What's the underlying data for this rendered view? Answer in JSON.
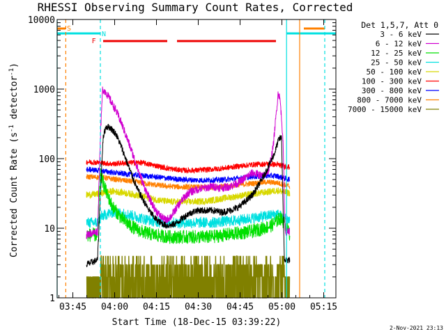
{
  "chart_data": {
    "type": "line",
    "title": "RHESSI Observing Summary Count Rates, Corrected",
    "xlabel": "Start Time (18-Dec-15 03:39:22)",
    "ylabel_main": "Corrected Count Rate (s",
    "ylabel_sup": "-1",
    "ylabel_tail": " detector",
    "ylabel_end": ")",
    "footer": "2-Nov-2021 23:13",
    "y_scale": "log",
    "ylim": [
      1,
      10000
    ],
    "xlim_minutes": [
      0,
      100
    ],
    "x_ticks": [
      {
        "label": "03:45",
        "m": 5.63
      },
      {
        "label": "04:00",
        "m": 20.63
      },
      {
        "label": "04:15",
        "m": 35.63
      },
      {
        "label": "04:30",
        "m": 50.63
      },
      {
        "label": "04:45",
        "m": 65.63
      },
      {
        "label": "05:00",
        "m": 80.63
      },
      {
        "label": "05:15",
        "m": 95.63
      }
    ],
    "y_ticks": [
      {
        "label": "1",
        "v": 1
      },
      {
        "label": "10",
        "v": 10
      },
      {
        "label": "100",
        "v": 100
      },
      {
        "label": "1000",
        "v": 1000
      },
      {
        "label": "10000",
        "v": 10000
      }
    ],
    "legend_header": "Det 1,5,7, Att 0",
    "legend_placement": "right",
    "flag_labels": {
      "saa": "S",
      "night": "N",
      "flare": "F"
    },
    "flag_colors": {
      "saa": "#ff8000",
      "night": "#00e0e0",
      "flare": "#ee0000"
    },
    "day_gaps_minutes": [
      [
        0,
        15.5
      ],
      [
        82.3,
        100
      ]
    ],
    "saa_intervals_minutes": [
      [
        0,
        3
      ],
      [
        88.5,
        96
      ]
    ],
    "flare_intervals_minutes": [
      [
        16.5,
        39.5
      ],
      [
        43.0,
        78.5
      ]
    ],
    "vlines": [
      {
        "m": 0.0,
        "color": "#00e0e0",
        "style": "solid"
      },
      {
        "m": 3.1,
        "color": "#ff8000",
        "style": "dashed"
      },
      {
        "m": 15.5,
        "color": "#00e0e0",
        "style": "dashed"
      },
      {
        "m": 82.3,
        "color": "#00e0e0",
        "style": "solid"
      },
      {
        "m": 87.0,
        "color": "#ff8000",
        "style": "solid"
      },
      {
        "m": 96.0,
        "color": "#00e0e0",
        "style": "dashed"
      }
    ],
    "series": [
      {
        "name": "3 - 6 keV",
        "color": "#000000",
        "points": [
          [
            10.5,
            3.0
          ],
          [
            14.5,
            3.5
          ],
          [
            15.5,
            30
          ],
          [
            16.5,
            200
          ],
          [
            17.5,
            290
          ],
          [
            19,
            280
          ],
          [
            21,
            230
          ],
          [
            23,
            150
          ],
          [
            25,
            90
          ],
          [
            27,
            55
          ],
          [
            29,
            35
          ],
          [
            31,
            25
          ],
          [
            33,
            18
          ],
          [
            35,
            14
          ],
          [
            37,
            12
          ],
          [
            39,
            11
          ],
          [
            41,
            11
          ],
          [
            43,
            12
          ],
          [
            45,
            14
          ],
          [
            47,
            16
          ],
          [
            50,
            18
          ],
          [
            53,
            18
          ],
          [
            56,
            18
          ],
          [
            59,
            17
          ],
          [
            62,
            18
          ],
          [
            65,
            20
          ],
          [
            68,
            25
          ],
          [
            70,
            30
          ],
          [
            72,
            40
          ],
          [
            74,
            55
          ],
          [
            76,
            80
          ],
          [
            78,
            120
          ],
          [
            79.5,
            190
          ],
          [
            80.5,
            200
          ],
          [
            81.5,
            3.5
          ],
          [
            83.5,
            3.5
          ]
        ],
        "noise": 0.05
      },
      {
        "name": "6 - 12 keV",
        "color": "#d000d0",
        "points": [
          [
            10.5,
            8
          ],
          [
            14.5,
            9
          ],
          [
            15.5,
            200
          ],
          [
            16.3,
            1000
          ],
          [
            17.5,
            900
          ],
          [
            19,
            700
          ],
          [
            21,
            500
          ],
          [
            23,
            330
          ],
          [
            25,
            200
          ],
          [
            27,
            120
          ],
          [
            29,
            70
          ],
          [
            31,
            42
          ],
          [
            33,
            27
          ],
          [
            35,
            19
          ],
          [
            37,
            15
          ],
          [
            39,
            13
          ],
          [
            41,
            15
          ],
          [
            43,
            20
          ],
          [
            45,
            26
          ],
          [
            47,
            32
          ],
          [
            50,
            36
          ],
          [
            53,
            38
          ],
          [
            56,
            40
          ],
          [
            59,
            38
          ],
          [
            62,
            40
          ],
          [
            65,
            45
          ],
          [
            68,
            55
          ],
          [
            70,
            62
          ],
          [
            72,
            60
          ],
          [
            74,
            55
          ],
          [
            76,
            70
          ],
          [
            77.5,
            150
          ],
          [
            78.5,
            400
          ],
          [
            79.3,
            900
          ],
          [
            80,
            700
          ],
          [
            81,
            200
          ],
          [
            81.8,
            9
          ],
          [
            83.5,
            9
          ]
        ],
        "noise": 0.06
      },
      {
        "name": "12 - 25 keV",
        "color": "#00e000",
        "points": [
          [
            10.5,
            8
          ],
          [
            14.5,
            8
          ],
          [
            15.5,
            60
          ],
          [
            16.5,
            45
          ],
          [
            18,
            30
          ],
          [
            20,
            20
          ],
          [
            23,
            14
          ],
          [
            26,
            11
          ],
          [
            30,
            9
          ],
          [
            35,
            8
          ],
          [
            40,
            7.5
          ],
          [
            45,
            7.5
          ],
          [
            50,
            7.5
          ],
          [
            55,
            7.5
          ],
          [
            60,
            8
          ],
          [
            65,
            8.5
          ],
          [
            70,
            9
          ],
          [
            74,
            10
          ],
          [
            77,
            11
          ],
          [
            80,
            14
          ],
          [
            81.5,
            12
          ],
          [
            83.5,
            8
          ]
        ],
        "noise": 0.1
      },
      {
        "name": "25 - 50 keV",
        "color": "#00e0e0",
        "points": [
          [
            10.5,
            12
          ],
          [
            14.5,
            12
          ],
          [
            16,
            15
          ],
          [
            20,
            17
          ],
          [
            25,
            16
          ],
          [
            30,
            14
          ],
          [
            35,
            12.5
          ],
          [
            40,
            12
          ],
          [
            45,
            12
          ],
          [
            50,
            12
          ],
          [
            55,
            12
          ],
          [
            60,
            12.5
          ],
          [
            65,
            13
          ],
          [
            70,
            14
          ],
          [
            75,
            15
          ],
          [
            79,
            16
          ],
          [
            81.5,
            14
          ],
          [
            83.5,
            13
          ]
        ],
        "noise": 0.08
      },
      {
        "name": "50 - 100 keV",
        "color": "#d8d800",
        "points": [
          [
            10.5,
            30
          ],
          [
            14.5,
            31
          ],
          [
            16,
            32
          ],
          [
            20,
            34
          ],
          [
            25,
            32
          ],
          [
            30,
            29
          ],
          [
            35,
            26
          ],
          [
            40,
            24
          ],
          [
            45,
            24
          ],
          [
            50,
            24
          ],
          [
            55,
            25
          ],
          [
            60,
            27
          ],
          [
            65,
            29
          ],
          [
            70,
            31
          ],
          [
            75,
            33
          ],
          [
            79,
            35
          ],
          [
            81.5,
            33
          ],
          [
            83.5,
            32
          ]
        ],
        "noise": 0.05
      },
      {
        "name": "100 - 300 keV",
        "color": "#ff0000",
        "points": [
          [
            10.5,
            90
          ],
          [
            14.5,
            88
          ],
          [
            17,
            86
          ],
          [
            20,
            84
          ],
          [
            25,
            87
          ],
          [
            30,
            88
          ],
          [
            35,
            80
          ],
          [
            40,
            72
          ],
          [
            45,
            68
          ],
          [
            50,
            68
          ],
          [
            55,
            70
          ],
          [
            60,
            73
          ],
          [
            65,
            78
          ],
          [
            70,
            82
          ],
          [
            75,
            84
          ],
          [
            79,
            82
          ],
          [
            81.5,
            78
          ],
          [
            83.5,
            75
          ]
        ],
        "noise": 0.04
      },
      {
        "name": "300 - 800 keV",
        "color": "#0000ff",
        "points": [
          [
            10.5,
            70
          ],
          [
            14.5,
            68
          ],
          [
            17,
            66
          ],
          [
            20,
            63
          ],
          [
            25,
            60
          ],
          [
            30,
            57
          ],
          [
            35,
            55
          ],
          [
            40,
            52
          ],
          [
            45,
            50
          ],
          [
            50,
            49
          ],
          [
            55,
            49
          ],
          [
            60,
            50
          ],
          [
            65,
            52
          ],
          [
            70,
            55
          ],
          [
            75,
            57
          ],
          [
            79,
            56
          ],
          [
            81.5,
            52
          ],
          [
            83.5,
            50
          ]
        ],
        "noise": 0.04
      },
      {
        "name": "800 - 7000 keV",
        "color": "#ff8000",
        "points": [
          [
            10.5,
            55
          ],
          [
            14.5,
            54
          ],
          [
            17,
            53
          ],
          [
            20,
            51
          ],
          [
            25,
            48
          ],
          [
            30,
            45
          ],
          [
            35,
            42
          ],
          [
            40,
            40
          ],
          [
            45,
            39
          ],
          [
            50,
            39
          ],
          [
            55,
            39
          ],
          [
            60,
            40
          ],
          [
            65,
            42
          ],
          [
            70,
            44
          ],
          [
            75,
            46
          ],
          [
            79,
            45
          ],
          [
            81.5,
            42
          ],
          [
            83.5,
            40
          ]
        ],
        "noise": 0.04
      },
      {
        "name": "7000 - 15000 keV",
        "color": "#808000",
        "points": [
          [
            10.5,
            1.5
          ],
          [
            14.5,
            1.5
          ],
          [
            16,
            2
          ],
          [
            20,
            2.2
          ],
          [
            25,
            2.5
          ],
          [
            30,
            2.4
          ],
          [
            35,
            2.3
          ],
          [
            40,
            2.0
          ],
          [
            45,
            1.8
          ],
          [
            50,
            1.8
          ],
          [
            55,
            1.8
          ],
          [
            60,
            1.9
          ],
          [
            65,
            2.0
          ],
          [
            70,
            2.2
          ],
          [
            75,
            2.4
          ],
          [
            79,
            2.3
          ],
          [
            81.5,
            2.0
          ],
          [
            83.5,
            1.8
          ]
        ],
        "noise": 0.25
      }
    ]
  }
}
